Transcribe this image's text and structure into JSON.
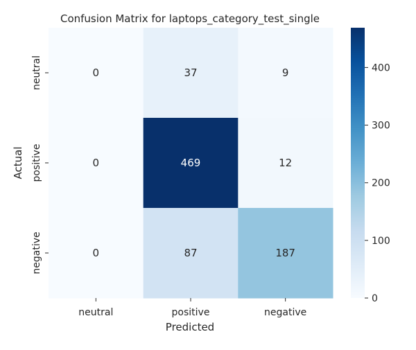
{
  "chart_data": {
    "type": "heatmap",
    "title": "Confusion Matrix for laptops_category_test_single",
    "xlabel": "Predicted",
    "ylabel": "Actual",
    "x_categories": [
      "neutral",
      "positive",
      "negative"
    ],
    "y_categories": [
      "neutral",
      "positive",
      "negative"
    ],
    "values": [
      [
        0,
        37,
        9
      ],
      [
        0,
        469,
        12
      ],
      [
        0,
        87,
        187
      ]
    ],
    "colormap": "Blues",
    "colorbar": {
      "range": [
        0,
        469
      ],
      "ticks": [
        0,
        100,
        200,
        300,
        400
      ]
    }
  }
}
